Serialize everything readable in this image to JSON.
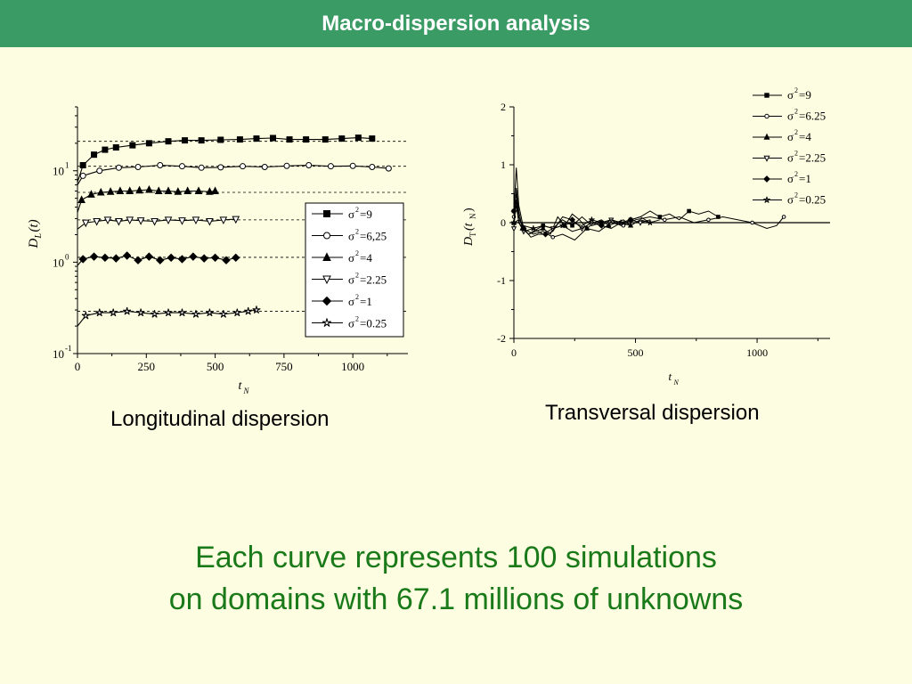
{
  "slide": {
    "title": "Macro-dispersion analysis",
    "footer_line1": "Each curve represents 100 simulations",
    "footer_line2": "on domains with 67.1 millions of unknowns",
    "accent_color": "#3a9b65",
    "footer_color": "#1a7a1a",
    "background": "#fdfde1"
  },
  "chart_data": [
    {
      "type": "line",
      "caption": "Longitudinal dispersion",
      "ylabel_main": "D",
      "ylabel_sub": "L",
      "ylabel_arg": "(t)",
      "xlabel_main": "t",
      "xlabel_sub": "N",
      "yscale": "log",
      "xlim": [
        0,
        1200
      ],
      "ylim": [
        0.1,
        50
      ],
      "xticks": [
        "0",
        "250",
        "500",
        "750",
        "1000"
      ],
      "xtick_values": [
        0,
        250,
        500,
        750,
        1000
      ],
      "yticks": [
        {
          "base": "10",
          "exp": "-1",
          "value": 0.1
        },
        {
          "base": "10",
          "exp": "0",
          "value": 1
        },
        {
          "base": "10",
          "exp": "1",
          "value": 10
        }
      ],
      "legend_position": "right",
      "reference_lines": [
        21,
        11.2,
        5.8,
        2.9,
        1.13,
        0.29
      ],
      "series": [
        {
          "name": "=9",
          "marker": "square-filled",
          "x": [
            0,
            20,
            60,
            100,
            140,
            200,
            260,
            330,
            390,
            450,
            520,
            590,
            650,
            710,
            770,
            830,
            900,
            960,
            1020,
            1070
          ],
          "y": [
            7.5,
            11.5,
            15,
            17,
            18,
            19,
            20,
            21,
            21.5,
            21.5,
            21.8,
            22,
            22.5,
            22.8,
            22,
            22,
            22,
            22.5,
            23,
            22.5
          ]
        },
        {
          "name": "=6,25",
          "marker": "circle-open",
          "x": [
            0,
            20,
            80,
            150,
            220,
            300,
            380,
            450,
            520,
            600,
            680,
            760,
            840,
            920,
            1000,
            1070,
            1130
          ],
          "y": [
            7.0,
            8.8,
            10,
            10.8,
            11.0,
            11.5,
            11.2,
            10.8,
            10.9,
            11.2,
            11.0,
            11.3,
            11.5,
            11.2,
            11.3,
            11.0,
            10.6
          ]
        },
        {
          "name": "=4",
          "marker": "triangle-filled",
          "x": [
            0,
            15,
            50,
            85,
            120,
            155,
            190,
            225,
            260,
            295,
            330,
            365,
            400,
            440,
            480,
            500
          ],
          "y": [
            3.5,
            4.8,
            5.5,
            5.8,
            5.9,
            6.0,
            6.0,
            6.1,
            6.2,
            6.0,
            6.0,
            5.9,
            6.0,
            6.0,
            5.9,
            6.0
          ]
        },
        {
          "name": "=2.25",
          "marker": "triangle-down-open",
          "x": [
            0,
            30,
            70,
            110,
            150,
            190,
            230,
            280,
            330,
            380,
            430,
            480,
            530,
            575
          ],
          "y": [
            2.3,
            2.7,
            2.8,
            2.9,
            2.8,
            2.9,
            2.85,
            2.8,
            2.9,
            2.85,
            2.9,
            2.8,
            2.9,
            2.95
          ]
        },
        {
          "name": "=1",
          "marker": "diamond-filled",
          "x": [
            0,
            20,
            60,
            100,
            140,
            180,
            220,
            260,
            300,
            340,
            380,
            420,
            460,
            500,
            540,
            575
          ],
          "y": [
            0.92,
            1.08,
            1.15,
            1.12,
            1.1,
            1.18,
            1.05,
            1.15,
            1.05,
            1.12,
            1.08,
            1.15,
            1.1,
            1.12,
            1.05,
            1.12
          ]
        },
        {
          "name": "=0.25",
          "marker": "star-open",
          "x": [
            0,
            30,
            80,
            130,
            180,
            230,
            280,
            330,
            380,
            430,
            480,
            530,
            580,
            620,
            650
          ],
          "y": [
            0.2,
            0.26,
            0.28,
            0.28,
            0.29,
            0.28,
            0.27,
            0.28,
            0.28,
            0.27,
            0.28,
            0.27,
            0.28,
            0.29,
            0.3
          ]
        }
      ]
    },
    {
      "type": "line",
      "caption": "Transversal dispersion",
      "ylabel_main": "D",
      "ylabel_sub": "T",
      "ylabel_arg": "(t",
      "ylabel_arg_sub": "N",
      "ylabel_close": ")",
      "xlabel_main": "t",
      "xlabel_sub": "N",
      "xlim": [
        0,
        1300
      ],
      "ylim": [
        -2,
        2
      ],
      "xticks": [
        "0",
        "500",
        "1000"
      ],
      "xtick_values": [
        0,
        500,
        1000
      ],
      "yticks": [
        "-2",
        "-1",
        "0",
        "1",
        "2"
      ],
      "ytick_values": [
        -2,
        -1,
        0,
        1,
        2
      ],
      "legend_position": "top-right",
      "series": [
        {
          "name": "=9",
          "marker": "square-filled",
          "x": [
            0,
            10,
            20,
            40,
            60,
            80,
            120,
            160,
            200,
            240,
            280,
            320,
            360,
            400,
            440,
            480,
            520,
            560,
            600,
            640,
            680,
            720,
            760,
            800,
            840
          ],
          "y": [
            0.2,
            0.5,
            0.1,
            -0.1,
            -0.2,
            -0.15,
            -0.05,
            -0.1,
            0.05,
            -0.05,
            0.1,
            -0.05,
            0.0,
            0.05,
            -0.05,
            0.05,
            0.1,
            0.2,
            0.1,
            0.15,
            0.05,
            0.2,
            0.15,
            0.2,
            0.1
          ]
        },
        {
          "name": "=6.25",
          "marker": "circle-open",
          "x": [
            0,
            10,
            20,
            40,
            80,
            120,
            160,
            200,
            250,
            300,
            350,
            400,
            450,
            500,
            560,
            620,
            680,
            740,
            800,
            860,
            920,
            980,
            1040,
            1080,
            1110
          ],
          "y": [
            0.1,
            0.3,
            0.0,
            -0.1,
            -0.2,
            -0.15,
            -0.25,
            -0.2,
            -0.3,
            -0.1,
            -0.15,
            0.0,
            -0.05,
            0.05,
            0.1,
            0.05,
            0.1,
            0.0,
            0.05,
            0.1,
            0.05,
            0.0,
            -0.1,
            -0.05,
            0.1
          ]
        },
        {
          "name": "=4",
          "marker": "triangle-filled",
          "x": [
            0,
            10,
            20,
            35,
            60,
            90,
            120,
            150,
            180,
            210,
            240,
            270,
            300,
            330,
            360,
            390,
            420,
            450,
            480
          ],
          "y": [
            0.0,
            0.6,
            0.2,
            -0.1,
            -0.2,
            -0.15,
            -0.1,
            -0.2,
            0.1,
            -0.05,
            0.15,
            0.05,
            -0.1,
            0.0,
            0.05,
            -0.05,
            0.0,
            0.05,
            -0.05
          ]
        },
        {
          "name": "=2.25",
          "marker": "triangle-down-open",
          "x": [
            0,
            10,
            20,
            40,
            80,
            120,
            160,
            200,
            240,
            280,
            320,
            360,
            400,
            440,
            480,
            520,
            560
          ],
          "y": [
            -0.1,
            0.4,
            0.0,
            -0.15,
            -0.1,
            -0.2,
            -0.1,
            -0.05,
            -0.15,
            -0.1,
            0.0,
            -0.05,
            0.05,
            0.0,
            0.05,
            0.0,
            0.05
          ]
        },
        {
          "name": "=1",
          "marker": "diamond-filled",
          "x": [
            0,
            10,
            20,
            40,
            70,
            100,
            130,
            160,
            200,
            240,
            280,
            320,
            360,
            400,
            440,
            480,
            520,
            560
          ],
          "y": [
            0.2,
            0.95,
            0.3,
            -0.1,
            -0.25,
            -0.2,
            -0.2,
            -0.15,
            0.1,
            0.05,
            -0.1,
            0.0,
            -0.05,
            -0.1,
            0.0,
            0.05,
            0.1,
            0.0
          ]
        },
        {
          "name": "=0.25",
          "marker": "star-open",
          "x": [
            0,
            20,
            40,
            80,
            120,
            160,
            200,
            240,
            280,
            320,
            360,
            400,
            440,
            480,
            520,
            560,
            600
          ],
          "y": [
            0.0,
            0.05,
            -0.05,
            -0.1,
            -0.05,
            -0.1,
            -0.05,
            0.0,
            -0.05,
            0.05,
            0.0,
            0.05,
            0.0,
            -0.05,
            0.05,
            0.0,
            0.05
          ]
        }
      ]
    }
  ]
}
